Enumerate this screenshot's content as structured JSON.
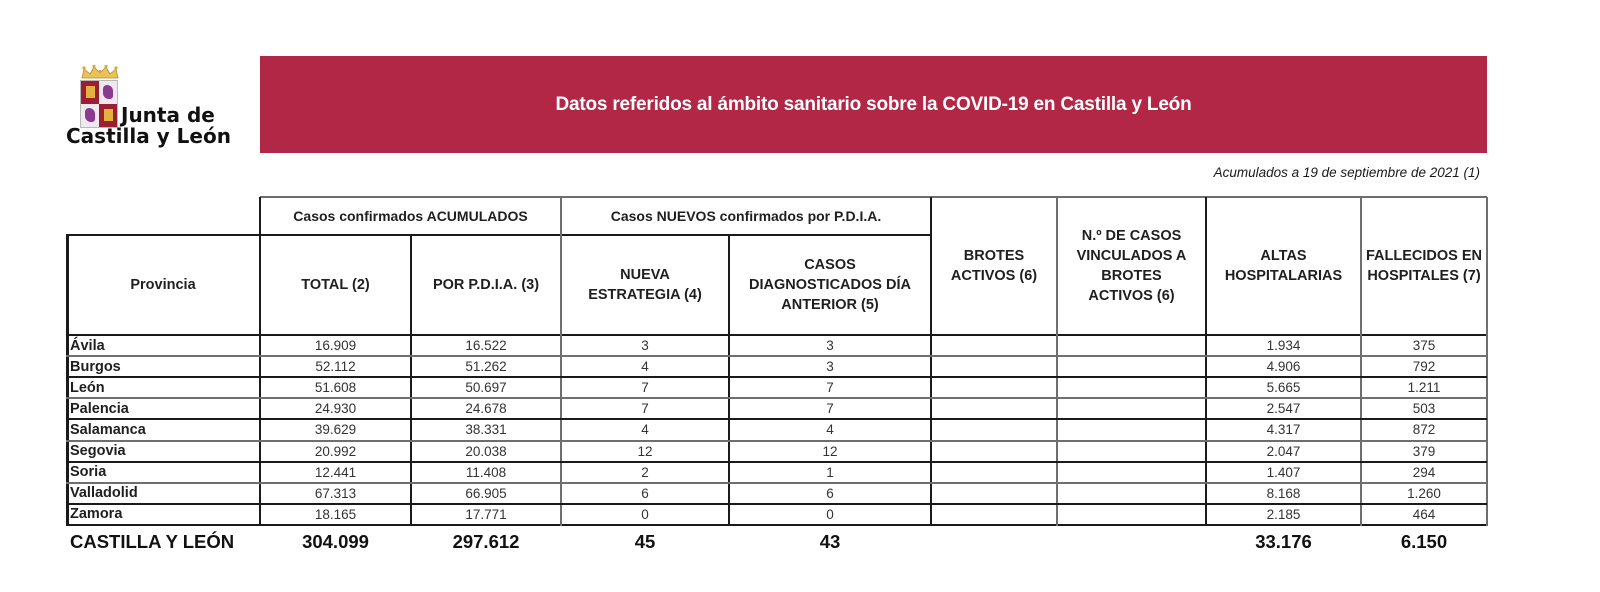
{
  "logo": {
    "line1": "Junta de",
    "line2": "Castilla y León"
  },
  "banner": {
    "title": "Datos referidos al ámbito sanitario sobre la COVID-19 en Castilla y León",
    "color": "#B22746"
  },
  "date_note": "Acumulados a 19  de septiembre de 2021 (1)",
  "table": {
    "group_headers": {
      "acumulados": "Casos confirmados ACUMULADOS",
      "nuevos": "Casos NUEVOS confirmados por P.D.I.A."
    },
    "columns": {
      "provincia": "Provincia",
      "total": "TOTAL (2)",
      "por_pdia": "POR P.D.I.A. (3)",
      "nueva_estrategia": "NUEVA ESTRATEGIA (4)",
      "dia_anterior": "CASOS DIAGNOSTICADOS DÍA ANTERIOR (5)",
      "brotes": "BROTES ACTIVOS (6)",
      "vinculados": "N.º DE CASOS VINCULADOS A BROTES ACTIVOS (6)",
      "altas": "ALTAS HOSPITALARIAS",
      "fallecidos": "FALLECIDOS EN HOSPITALES (7)"
    },
    "rows": [
      {
        "provincia": "Ávila",
        "total": "16.909",
        "por_pdia": "16.522",
        "nueva_estrategia": "3",
        "dia_anterior": "3",
        "brotes": "",
        "vinculados": "",
        "altas": "1.934",
        "fallecidos": "375"
      },
      {
        "provincia": "Burgos",
        "total": "52.112",
        "por_pdia": "51.262",
        "nueva_estrategia": "4",
        "dia_anterior": "3",
        "brotes": "",
        "vinculados": "",
        "altas": "4.906",
        "fallecidos": "792"
      },
      {
        "provincia": "León",
        "total": "51.608",
        "por_pdia": "50.697",
        "nueva_estrategia": "7",
        "dia_anterior": "7",
        "brotes": "",
        "vinculados": "",
        "altas": "5.665",
        "fallecidos": "1.211"
      },
      {
        "provincia": "Palencia",
        "total": "24.930",
        "por_pdia": "24.678",
        "nueva_estrategia": "7",
        "dia_anterior": "7",
        "brotes": "",
        "vinculados": "",
        "altas": "2.547",
        "fallecidos": "503"
      },
      {
        "provincia": "Salamanca",
        "total": "39.629",
        "por_pdia": "38.331",
        "nueva_estrategia": "4",
        "dia_anterior": "4",
        "brotes": "",
        "vinculados": "",
        "altas": "4.317",
        "fallecidos": "872"
      },
      {
        "provincia": "Segovia",
        "total": "20.992",
        "por_pdia": "20.038",
        "nueva_estrategia": "12",
        "dia_anterior": "12",
        "brotes": "",
        "vinculados": "",
        "altas": "2.047",
        "fallecidos": "379"
      },
      {
        "provincia": "Soria",
        "total": "12.441",
        "por_pdia": "11.408",
        "nueva_estrategia": "2",
        "dia_anterior": "1",
        "brotes": "",
        "vinculados": "",
        "altas": "1.407",
        "fallecidos": "294"
      },
      {
        "provincia": "Valladolid",
        "total": "67.313",
        "por_pdia": "66.905",
        "nueva_estrategia": "6",
        "dia_anterior": "6",
        "brotes": "",
        "vinculados": "",
        "altas": "8.168",
        "fallecidos": "1.260"
      },
      {
        "provincia": "Zamora",
        "total": "18.165",
        "por_pdia": "17.771",
        "nueva_estrategia": "0",
        "dia_anterior": "0",
        "brotes": "",
        "vinculados": "",
        "altas": "2.185",
        "fallecidos": "464"
      }
    ],
    "totals": {
      "provincia": "CASTILLA Y LEÓN",
      "total": "304.099",
      "por_pdia": "297.612",
      "nueva_estrategia": "45",
      "dia_anterior": "43",
      "brotes": "",
      "vinculados": "",
      "altas": "33.176",
      "fallecidos": "6.150"
    }
  }
}
